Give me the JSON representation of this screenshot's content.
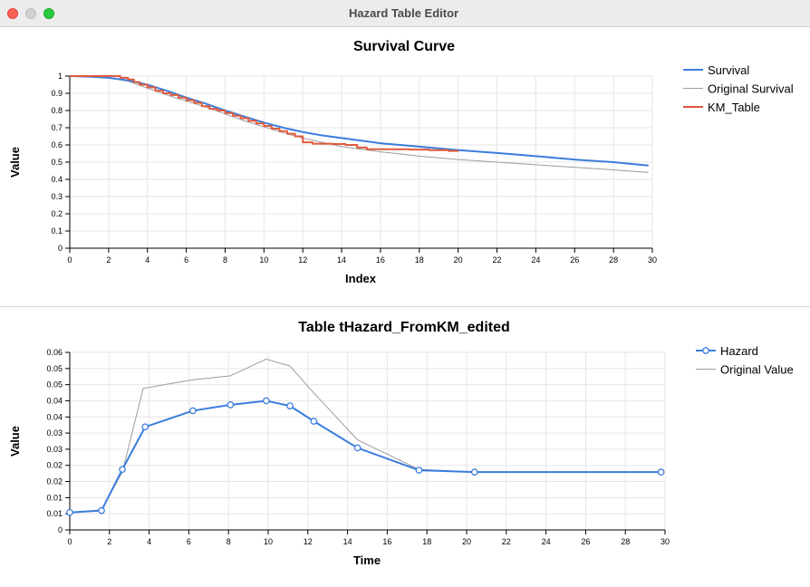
{
  "window": {
    "title": "Hazard Table Editor",
    "traffic_lights": [
      "close",
      "minimize",
      "zoom"
    ]
  },
  "colors": {
    "blue": "#3b7ddd",
    "red": "#e05a3c",
    "gray": "#9c9c9c",
    "grid": "#e6e6e6"
  },
  "chart_data": [
    {
      "type": "line",
      "title": "Survival Curve",
      "xlabel": "Index",
      "ylabel": "Value",
      "xlim": [
        0,
        30
      ],
      "ylim": [
        0,
        1
      ],
      "xticks": [
        "0",
        "2",
        "4",
        "6",
        "8",
        "10",
        "12",
        "14",
        "16",
        "18",
        "20",
        "22",
        "24",
        "26",
        "28",
        "30"
      ],
      "yticks": [
        "0",
        "0.1",
        "0.2",
        "0.3",
        "0.4",
        "0.5",
        "0.6",
        "0.7",
        "0.8",
        "0.9",
        "1"
      ],
      "grid": true,
      "legend_position": "right",
      "series": [
        {
          "name": "Survival",
          "color": "#3b7ddd",
          "points": [
            [
              0,
              1.0
            ],
            [
              1,
              0.997
            ],
            [
              2,
              0.99
            ],
            [
              3,
              0.975
            ],
            [
              4,
              0.95
            ],
            [
              5,
              0.915
            ],
            [
              6,
              0.875
            ],
            [
              7,
              0.84
            ],
            [
              8,
              0.8
            ],
            [
              9,
              0.765
            ],
            [
              10,
              0.73
            ],
            [
              11,
              0.7
            ],
            [
              12,
              0.675
            ],
            [
              13,
              0.655
            ],
            [
              14,
              0.64
            ],
            [
              15,
              0.625
            ],
            [
              16,
              0.61
            ],
            [
              17,
              0.6
            ],
            [
              18,
              0.59
            ],
            [
              19,
              0.58
            ],
            [
              20,
              0.57
            ],
            [
              22,
              0.553
            ],
            [
              24,
              0.535
            ],
            [
              26,
              0.515
            ],
            [
              28,
              0.5
            ],
            [
              29.8,
              0.48
            ]
          ]
        },
        {
          "name": "Original Survival",
          "color": "#9c9c9c",
          "points": [
            [
              0,
              1.0
            ],
            [
              2,
              0.993
            ],
            [
              3,
              0.97
            ],
            [
              4,
              0.93
            ],
            [
              5,
              0.89
            ],
            [
              6,
              0.855
            ],
            [
              7,
              0.82
            ],
            [
              8,
              0.78
            ],
            [
              9,
              0.74
            ],
            [
              10,
              0.705
            ],
            [
              11,
              0.67
            ],
            [
              12,
              0.64
            ],
            [
              13,
              0.615
            ],
            [
              14,
              0.59
            ],
            [
              15,
              0.575
            ],
            [
              16,
              0.56
            ],
            [
              17,
              0.548
            ],
            [
              18,
              0.535
            ],
            [
              19,
              0.525
            ],
            [
              20,
              0.515
            ],
            [
              22,
              0.5
            ],
            [
              24,
              0.485
            ],
            [
              26,
              0.47
            ],
            [
              28,
              0.455
            ],
            [
              29.8,
              0.44
            ]
          ]
        },
        {
          "name": "KM_Table",
          "color": "#e05a3c",
          "step": true,
          "points": [
            [
              0,
              1.0
            ],
            [
              2.2,
              1.0
            ],
            [
              2.6,
              0.99
            ],
            [
              3.0,
              0.98
            ],
            [
              3.3,
              0.965
            ],
            [
              3.6,
              0.95
            ],
            [
              4.0,
              0.935
            ],
            [
              4.4,
              0.915
            ],
            [
              4.8,
              0.9
            ],
            [
              5.2,
              0.89
            ],
            [
              5.6,
              0.875
            ],
            [
              6.0,
              0.86
            ],
            [
              6.4,
              0.845
            ],
            [
              6.8,
              0.825
            ],
            [
              7.2,
              0.81
            ],
            [
              7.6,
              0.8
            ],
            [
              8.0,
              0.785
            ],
            [
              8.4,
              0.77
            ],
            [
              8.8,
              0.755
            ],
            [
              9.2,
              0.74
            ],
            [
              9.6,
              0.725
            ],
            [
              10.0,
              0.71
            ],
            [
              10.4,
              0.695
            ],
            [
              10.8,
              0.68
            ],
            [
              11.2,
              0.665
            ],
            [
              11.6,
              0.65
            ],
            [
              12.0,
              0.615
            ],
            [
              12.5,
              0.607
            ],
            [
              13.5,
              0.605
            ],
            [
              14.2,
              0.6
            ],
            [
              14.8,
              0.585
            ],
            [
              15.3,
              0.575
            ],
            [
              17.5,
              0.573
            ],
            [
              18.5,
              0.57
            ],
            [
              19.5,
              0.565
            ],
            [
              20.0,
              0.562
            ]
          ]
        }
      ]
    },
    {
      "type": "line",
      "title": "Table tHazard_FromKM_edited",
      "xlabel": "Time",
      "ylabel": "Value",
      "xlim": [
        0,
        30
      ],
      "ylim": [
        0,
        0.066
      ],
      "xticks": [
        "0",
        "2",
        "4",
        "6",
        "8",
        "10",
        "12",
        "14",
        "16",
        "18",
        "20",
        "22",
        "24",
        "26",
        "28",
        "30"
      ],
      "ytick_labels": [
        "0",
        "0.01",
        "0.01",
        "0.02",
        "0.02",
        "0.03",
        "0.03",
        "0.04",
        "0.04",
        "0.05",
        "0.05",
        "0.06"
      ],
      "ytick_step": 0.006,
      "grid": true,
      "legend_position": "right",
      "series": [
        {
          "name": "Hazard",
          "color": "#3b7ddd",
          "markers": true,
          "points": [
            [
              0,
              0.0065
            ],
            [
              1.6,
              0.0072
            ],
            [
              2.65,
              0.0225
            ],
            [
              3.8,
              0.0383
            ],
            [
              6.2,
              0.0443
            ],
            [
              8.1,
              0.0465
            ],
            [
              9.9,
              0.048
            ],
            [
              11.1,
              0.0461
            ],
            [
              12.3,
              0.0404
            ],
            [
              14.5,
              0.0305
            ],
            [
              17.6,
              0.0222
            ],
            [
              20.4,
              0.0215
            ],
            [
              29.8,
              0.0215
            ]
          ]
        },
        {
          "name": "Original Value",
          "color": "#9c9c9c",
          "points": [
            [
              0,
              0.0065
            ],
            [
              1.6,
              0.0075
            ],
            [
              2.65,
              0.0215
            ],
            [
              3.7,
              0.0526
            ],
            [
              6.2,
              0.0558
            ],
            [
              8.1,
              0.0573
            ],
            [
              9.9,
              0.0635
            ],
            [
              11.1,
              0.0609
            ],
            [
              12.3,
              0.0509
            ],
            [
              14.5,
              0.0335
            ],
            [
              17.6,
              0.0225
            ],
            [
              20.4,
              0.0215
            ],
            [
              29.8,
              0.0215
            ]
          ]
        }
      ]
    }
  ]
}
